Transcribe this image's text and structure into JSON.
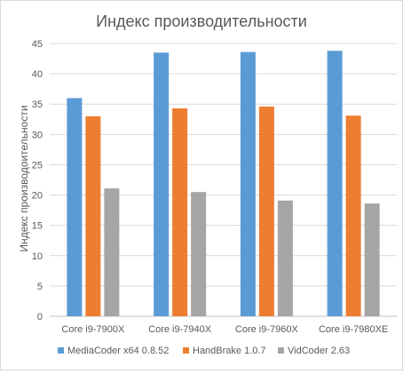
{
  "chart_data": {
    "type": "bar",
    "title": "Индекс производительности",
    "ylabel": "Индекс производоительности",
    "xlabel": "",
    "categories": [
      "Core i9-7900X",
      "Core i9-7940X",
      "Core i9-7960X",
      "Core i9-7980XE"
    ],
    "series": [
      {
        "name": "MediaCoder x64 0.8.52",
        "color": "#5b9bd5",
        "values": [
          36.0,
          43.5,
          43.6,
          43.8
        ]
      },
      {
        "name": "HandBrake 1.0.7",
        "color": "#ed7d31",
        "values": [
          33.0,
          34.3,
          34.6,
          33.1
        ]
      },
      {
        "name": "VidCoder 2.63",
        "color": "#a5a5a5",
        "values": [
          21.1,
          20.5,
          19.1,
          18.6
        ]
      }
    ],
    "ylim": [
      0,
      45
    ],
    "yticks": [
      0,
      5,
      10,
      15,
      20,
      25,
      30,
      35,
      40,
      45
    ],
    "grid": true,
    "legend": "bottom"
  }
}
